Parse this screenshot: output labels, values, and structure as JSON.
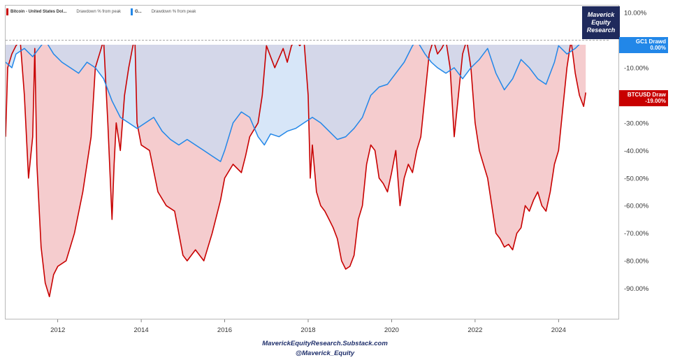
{
  "legend": {
    "btc_name": "Bitcoin - United States Dol...",
    "btc_sub": "Drawdown % from peak",
    "gc1_name": "G...",
    "gc1_sub": "Drawdown % from peak"
  },
  "brand": {
    "line1": "Maverick",
    "line2": "Equity",
    "line3": "Research"
  },
  "tags": {
    "gc1_name": "GC1 Drawd",
    "gc1_value": "0.00%",
    "btc_name": "BTCUSD Draw",
    "btc_value": "-19.00%"
  },
  "footer": {
    "line1": "MaverickEquityResearch.Substack.com",
    "line2": "@Maverick_Equity"
  },
  "colors": {
    "btc_line": "#c80000",
    "btc_fill": "#f4c9cb",
    "gc1_line": "#2287e8",
    "gc1_fill": "#c6dcf5",
    "overlap_fill": "#c2bdd6",
    "brand_bg": "#1f2a5c"
  },
  "chart_data": {
    "type": "area",
    "title": "",
    "xlabel": "",
    "ylabel": "",
    "x_range": [
      2010.75,
      2025.2
    ],
    "ylim": [
      -101,
      10
    ],
    "y_axis_side": "right",
    "y_ticks": [
      "10.00%",
      "-10.00%",
      "-30.00%",
      "-40.00%",
      "-50.00%",
      "-60.00%",
      "-70.00%",
      "-80.00%",
      "-90.00%"
    ],
    "y_tick_values": [
      10,
      -10,
      -30,
      -40,
      -50,
      -60,
      -70,
      -80,
      -90
    ],
    "x_ticks": [
      "2012",
      "2014",
      "2016",
      "2018",
      "2020",
      "2022",
      "2024"
    ],
    "x_tick_values": [
      2012,
      2014,
      2016,
      2018,
      2020,
      2022,
      2024
    ],
    "legend_position": "top-left",
    "grid": false,
    "series": [
      {
        "name": "Bitcoin - United States Dol...",
        "label": "BTCUSD Draw",
        "color": "#c80000",
        "x": [
          2010.75,
          2010.8,
          2010.9,
          2011.0,
          2011.1,
          2011.2,
          2011.3,
          2011.4,
          2011.45,
          2011.5,
          2011.6,
          2011.7,
          2011.8,
          2011.9,
          2012.0,
          2012.2,
          2012.4,
          2012.6,
          2012.8,
          2012.9,
          2013.0,
          2013.1,
          2013.2,
          2013.3,
          2013.35,
          2013.4,
          2013.5,
          2013.6,
          2013.7,
          2013.8,
          2013.85,
          2013.9,
          2014.0,
          2014.2,
          2014.4,
          2014.6,
          2014.8,
          2015.0,
          2015.1,
          2015.3,
          2015.5,
          2015.7,
          2015.9,
          2016.0,
          2016.2,
          2016.4,
          2016.5,
          2016.6,
          2016.8,
          2016.9,
          2017.0,
          2017.2,
          2017.4,
          2017.5,
          2017.6,
          2017.7,
          2017.8,
          2017.9,
          2018.0,
          2018.05,
          2018.1,
          2018.2,
          2018.3,
          2018.4,
          2018.5,
          2018.6,
          2018.7,
          2018.8,
          2018.9,
          2019.0,
          2019.1,
          2019.2,
          2019.3,
          2019.4,
          2019.5,
          2019.6,
          2019.7,
          2019.8,
          2019.9,
          2020.0,
          2020.1,
          2020.2,
          2020.3,
          2020.4,
          2020.5,
          2020.6,
          2020.7,
          2020.8,
          2020.9,
          2021.0,
          2021.1,
          2021.2,
          2021.3,
          2021.4,
          2021.5,
          2021.6,
          2021.7,
          2021.8,
          2021.9,
          2022.0,
          2022.1,
          2022.2,
          2022.3,
          2022.4,
          2022.5,
          2022.6,
          2022.7,
          2022.8,
          2022.9,
          2023.0,
          2023.1,
          2023.2,
          2023.3,
          2023.4,
          2023.5,
          2023.6,
          2023.7,
          2023.8,
          2023.9,
          2024.0,
          2024.1,
          2024.2,
          2024.3,
          2024.4,
          2024.5,
          2024.6,
          2024.65
        ],
        "values": [
          -35,
          -10,
          -5,
          -2,
          0,
          -20,
          -50,
          -35,
          -3,
          -45,
          -75,
          -88,
          -93,
          -85,
          -82,
          -80,
          -70,
          -55,
          -35,
          -10,
          -5,
          0,
          -30,
          -65,
          -45,
          -30,
          -40,
          -20,
          -10,
          -2,
          0,
          -30,
          -38,
          -40,
          -55,
          -60,
          -62,
          -78,
          -80,
          -76,
          -80,
          -70,
          -58,
          -50,
          -45,
          -48,
          -42,
          -35,
          -30,
          -20,
          -2,
          -10,
          -3,
          -8,
          -2,
          0,
          -2,
          0,
          -20,
          -50,
          -38,
          -55,
          -60,
          -62,
          -65,
          -68,
          -72,
          -80,
          -83,
          -82,
          -78,
          -65,
          -60,
          -45,
          -38,
          -40,
          -50,
          -52,
          -55,
          -48,
          -40,
          -60,
          -50,
          -45,
          -48,
          -40,
          -35,
          -20,
          -5,
          0,
          -5,
          -3,
          0,
          -10,
          -35,
          -20,
          -5,
          0,
          -10,
          -30,
          -40,
          -45,
          -50,
          -60,
          -70,
          -72,
          -75,
          -74,
          -76,
          -70,
          -68,
          -60,
          -62,
          -58,
          -55,
          -60,
          -62,
          -55,
          -45,
          -40,
          -25,
          -10,
          0,
          -12,
          -20,
          -24,
          -19
        ],
        "fill": "#f4c9cb"
      },
      {
        "name": "G...",
        "label": "GC1 Drawd",
        "color": "#2287e8",
        "x": [
          2010.75,
          2010.9,
          2011.0,
          2011.2,
          2011.4,
          2011.6,
          2011.7,
          2011.9,
          2012.1,
          2012.3,
          2012.5,
          2012.7,
          2012.9,
          2013.1,
          2013.3,
          2013.5,
          2013.7,
          2013.9,
          2014.1,
          2014.3,
          2014.5,
          2014.7,
          2014.9,
          2015.1,
          2015.3,
          2015.5,
          2015.7,
          2015.9,
          2016.0,
          2016.2,
          2016.4,
          2016.6,
          2016.8,
          2016.95,
          2017.1,
          2017.3,
          2017.5,
          2017.7,
          2017.9,
          2018.1,
          2018.3,
          2018.5,
          2018.7,
          2018.9,
          2019.1,
          2019.3,
          2019.5,
          2019.7,
          2019.9,
          2020.1,
          2020.3,
          2020.5,
          2020.6,
          2020.8,
          2020.95,
          2021.1,
          2021.3,
          2021.5,
          2021.7,
          2021.9,
          2022.1,
          2022.3,
          2022.5,
          2022.7,
          2022.9,
          2023.1,
          2023.3,
          2023.5,
          2023.7,
          2023.9,
          2024.0,
          2024.2,
          2024.4,
          2024.6,
          2024.65
        ],
        "values": [
          -8,
          -10,
          -5,
          -3,
          -6,
          -2,
          0,
          -5,
          -8,
          -10,
          -12,
          -8,
          -10,
          -14,
          -22,
          -28,
          -30,
          -32,
          -30,
          -28,
          -33,
          -36,
          -38,
          -36,
          -38,
          -40,
          -42,
          -44,
          -40,
          -30,
          -26,
          -28,
          -35,
          -38,
          -34,
          -35,
          -33,
          -32,
          -30,
          -28,
          -30,
          -33,
          -36,
          -35,
          -32,
          -28,
          -20,
          -17,
          -16,
          -12,
          -8,
          -2,
          0,
          -5,
          -8,
          -10,
          -12,
          -10,
          -14,
          -10,
          -7,
          -3,
          -12,
          -18,
          -14,
          -7,
          -10,
          -14,
          -16,
          -8,
          -2,
          -5,
          -3,
          0,
          0
        ],
        "fill": "#c6dcf5"
      }
    ]
  }
}
